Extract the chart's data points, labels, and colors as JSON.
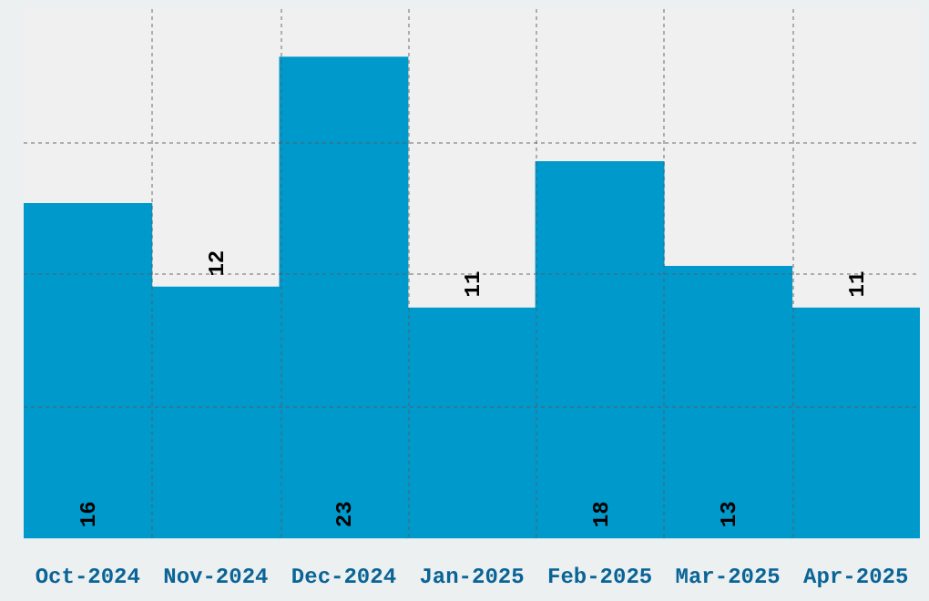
{
  "chart_data": {
    "type": "bar",
    "categories": [
      "Oct-2024",
      "Nov-2024",
      "Dec-2024",
      "Jan-2025",
      "Feb-2025",
      "Mar-2025",
      "Apr-2025"
    ],
    "values": [
      16,
      12,
      23,
      11,
      18,
      13,
      11
    ],
    "color": "#0099cc",
    "ylim": [
      0,
      25.3
    ],
    "tick_labels": "x",
    "grid": true,
    "data_labels": true
  }
}
